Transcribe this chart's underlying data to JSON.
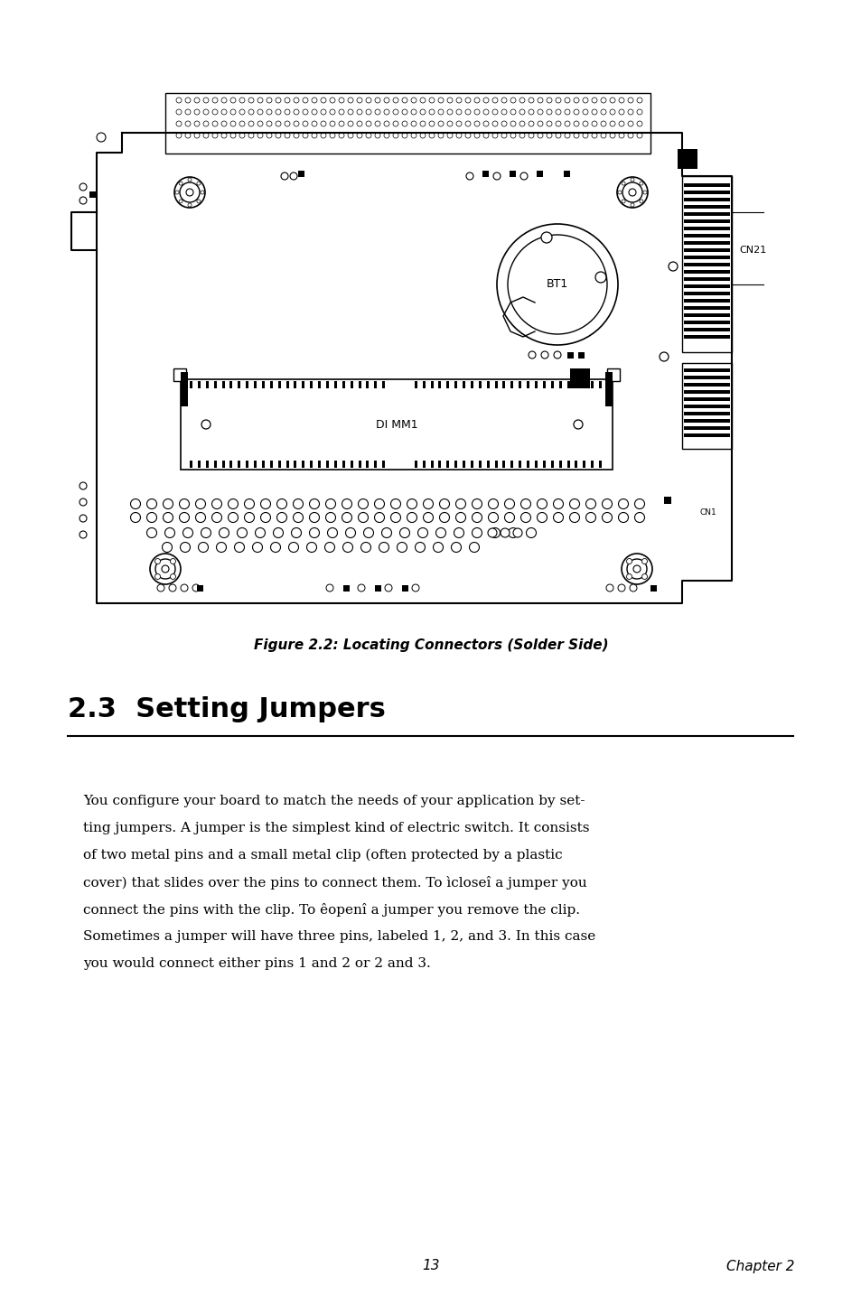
{
  "bg_color": "#ffffff",
  "figure_caption": "Figure 2.2: Locating Connectors (Solder Side)",
  "section_title": "2.3  Setting Jumpers",
  "body_line1": "You configure your board to match the needs of your application by set-",
  "body_line2": "ting jumpers. A jumper is the simplest kind of electric switch. It consists",
  "body_line3": "of two metal pins and a small metal clip (often protected by a plastic",
  "body_line4": "cover) that slides over the pins to connect them. To ìcloseî a jumper you",
  "body_line5": "connect the pins with the clip. To êopenî a jumper you remove the clip.",
  "body_line6": "Sometimes a jumper will have three pins, labeled 1, 2, and 3. In this case",
  "body_line7": "you would connect either pins 1 and 2 or 2 and 3.",
  "page_number": "13",
  "chapter": "Chapter 2"
}
